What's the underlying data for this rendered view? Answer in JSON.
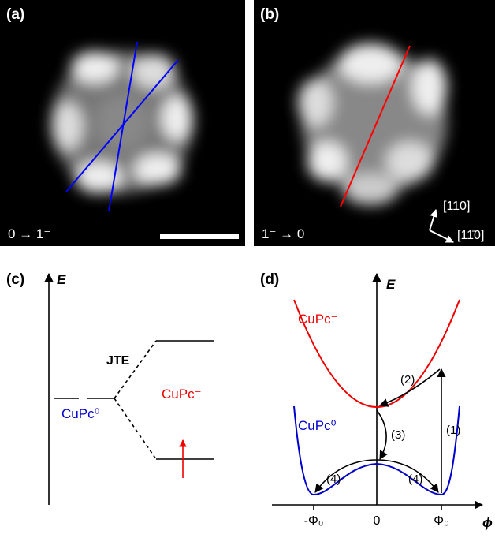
{
  "panel_a": {
    "label": "(a)",
    "caption": "0 → 1⁻"
  },
  "panel_b": {
    "label": "(b)",
    "caption": "1⁻ → 0",
    "direction_1": "[110]",
    "direction_2": "[11̄0]"
  },
  "panel_c": {
    "label": "(c)",
    "axis": "E",
    "jte": "JTE",
    "anion": "CuPc⁻",
    "neutral": "CuPc⁰"
  },
  "panel_d": {
    "label": "(d)",
    "y_axis": "E",
    "x_axis": "ϕ",
    "anion": "CuPc⁻",
    "neutral": "CuPc⁰",
    "x_tick_labels": [
      "-Φ₀",
      "0",
      "Φ₀"
    ],
    "steps": [
      "(1)",
      "(2)",
      "(3)",
      "(4)",
      "(4)"
    ]
  }
}
